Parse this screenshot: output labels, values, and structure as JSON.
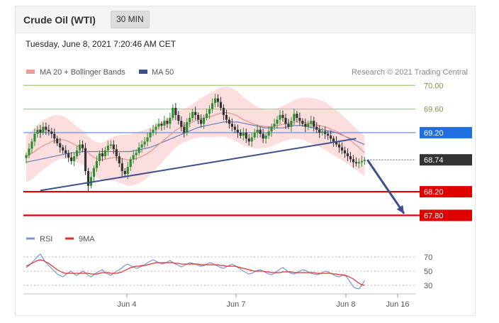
{
  "header": {
    "title": "Crude Oil (WTI)",
    "timeframe": "30 MIN",
    "timestamp": "Tuesday, June 8, 2021 7:20:46 AM CET"
  },
  "legend": {
    "items": [
      {
        "label": "MA 20 + Bollinger Bands",
        "color": "#f19a9a"
      },
      {
        "label": "MA 50",
        "color": "#3a4f8c"
      }
    ],
    "credit": "Research © 2021 Trading Central"
  },
  "colors": {
    "bullish": "#2f8f2f",
    "bearish": "#333333",
    "bollinger_fill": "#fbd8d8",
    "ma20": "#e79090",
    "ma50": "#6680b8",
    "trendline": "#3a4f8c",
    "resistance_green": "#a8d08a",
    "pivot_blue": "#6f8fd6",
    "support_red": "#e00000",
    "rsi": "#7c95d3",
    "rsi_ma": "#e03030"
  },
  "chart_data": [
    {
      "type": "candlestick",
      "title": "Crude Oil (WTI)",
      "ylim": [
        67.6,
        70.1
      ],
      "x_ticks": [
        "Jun 4",
        "Jun 7",
        "Jun 8",
        "Jun 16"
      ],
      "levels": [
        {
          "label": "70.00",
          "value": 70.0,
          "style": "resistance"
        },
        {
          "label": "69.60",
          "value": 69.6,
          "style": "resistance"
        },
        {
          "label": "69.20",
          "value": 69.2,
          "style": "pivot"
        },
        {
          "label": "68.74",
          "value": 68.74,
          "style": "last"
        },
        {
          "label": "68.20",
          "value": 68.2,
          "style": "support"
        },
        {
          "label": "67.80",
          "value": 67.8,
          "style": "support"
        }
      ],
      "trendline": {
        "from": {
          "bar": 5,
          "price": 68.22
        },
        "to": {
          "bar": 117,
          "price": 69.1
        }
      },
      "forecast_arrow": {
        "from": {
          "bar": 121,
          "price": 68.74
        },
        "to": {
          "bar": 134,
          "price": 67.83
        }
      },
      "closes": [
        68.82,
        68.93,
        69.05,
        69.18,
        69.25,
        69.2,
        69.3,
        69.25,
        69.22,
        69.18,
        69.1,
        69.02,
        68.95,
        68.9,
        68.85,
        68.78,
        68.72,
        68.8,
        68.9,
        69.0,
        68.94,
        68.55,
        68.3,
        68.45,
        68.6,
        68.72,
        68.85,
        68.8,
        68.9,
        68.98,
        69.0,
        68.92,
        68.8,
        68.68,
        68.55,
        68.5,
        68.62,
        68.75,
        68.82,
        68.86,
        68.95,
        69.0,
        69.05,
        69.12,
        69.2,
        69.25,
        69.3,
        69.35,
        69.32,
        69.4,
        69.35,
        69.45,
        69.62,
        69.5,
        69.4,
        69.3,
        69.2,
        69.38,
        69.45,
        69.55,
        69.5,
        69.42,
        69.35,
        69.45,
        69.52,
        69.6,
        69.7,
        69.78,
        69.72,
        69.62,
        69.5,
        69.42,
        69.35,
        69.3,
        69.25,
        69.2,
        69.15,
        69.2,
        69.1,
        69.05,
        69.12,
        69.2,
        69.25,
        69.18,
        69.1,
        69.15,
        69.22,
        69.3,
        69.35,
        69.42,
        69.5,
        69.45,
        69.35,
        69.3,
        69.4,
        69.52,
        69.45,
        69.4,
        69.35,
        69.3,
        69.35,
        69.4,
        69.3,
        69.25,
        69.2,
        69.22,
        69.18,
        69.15,
        69.1,
        69.05,
        69.0,
        68.95,
        68.9,
        68.85,
        68.8,
        68.75,
        68.7,
        68.68,
        68.7,
        68.72,
        68.74
      ],
      "ma20": [
        68.8,
        68.82,
        68.85,
        68.88,
        68.92,
        68.95,
        68.98,
        69.0,
        69.02,
        69.05,
        69.06,
        69.07,
        69.08,
        69.08,
        69.07,
        69.05,
        69.03,
        69.0,
        68.98,
        68.96,
        68.94,
        68.9,
        68.86,
        68.82,
        68.78,
        68.76,
        68.74,
        68.74,
        68.75,
        68.76,
        68.77,
        68.78,
        68.78,
        68.77,
        68.76,
        68.75,
        68.74,
        68.74,
        68.75,
        68.76,
        68.78,
        68.8,
        68.82,
        68.85,
        68.88,
        68.92,
        68.96,
        69.0,
        69.04,
        69.08,
        69.12,
        69.16,
        69.2,
        69.24,
        69.27,
        69.3,
        69.32,
        69.34,
        69.36,
        69.38,
        69.4,
        69.42,
        69.44,
        69.45,
        69.46,
        69.47,
        69.48,
        69.5,
        69.52,
        69.53,
        69.54,
        69.54,
        69.53,
        69.52,
        69.5,
        69.48,
        69.45,
        69.42,
        69.4,
        69.38,
        69.36,
        69.34,
        69.33,
        69.32,
        69.31,
        69.3,
        69.3,
        69.3,
        69.31,
        69.32,
        69.33,
        69.34,
        69.35,
        69.36,
        69.37,
        69.38,
        69.38,
        69.38,
        69.38,
        69.37,
        69.36,
        69.35,
        69.34,
        69.33,
        69.32,
        69.31,
        69.3,
        69.28,
        69.26,
        69.24,
        69.22,
        69.2,
        69.17,
        69.14,
        69.11,
        69.07,
        69.03,
        68.99,
        68.95,
        68.9,
        68.86
      ],
      "ma50": [
        68.7,
        68.71,
        68.72,
        68.73,
        68.74,
        68.75,
        68.76,
        68.77,
        68.78,
        68.79,
        68.8,
        68.81,
        68.82,
        68.83,
        68.84,
        68.85,
        68.86,
        68.86,
        68.87,
        68.87,
        68.88,
        68.88,
        68.88,
        68.88,
        68.88,
        68.88,
        68.88,
        68.88,
        68.88,
        68.88,
        68.88,
        68.88,
        68.88,
        68.88,
        68.88,
        68.88,
        68.88,
        68.88,
        68.89,
        68.9,
        68.91,
        68.92,
        68.93,
        68.94,
        68.95,
        68.97,
        68.99,
        69.01,
        69.03,
        69.05,
        69.07,
        69.09,
        69.11,
        69.13,
        69.15,
        69.17,
        69.19,
        69.21,
        69.23,
        69.25,
        69.27,
        69.29,
        69.3,
        69.31,
        69.32,
        69.33,
        69.34,
        69.35,
        69.36,
        69.37,
        69.38,
        69.38,
        69.38,
        69.38,
        69.38,
        69.38,
        69.37,
        69.36,
        69.35,
        69.34,
        69.33,
        69.32,
        69.31,
        69.3,
        69.29,
        69.28,
        69.28,
        69.28,
        69.28,
        69.28,
        69.28,
        69.28,
        69.29,
        69.3,
        69.31,
        69.32,
        69.32,
        69.32,
        69.32,
        69.31,
        69.3,
        69.29,
        69.28,
        69.27,
        69.26,
        69.25,
        69.24,
        69.23,
        69.22,
        69.21,
        69.2,
        69.18,
        69.16,
        69.14,
        69.12,
        69.1,
        69.08,
        69.06,
        69.04,
        69.02,
        69.0
      ]
    },
    {
      "type": "line",
      "legend": [
        {
          "name": "RSI",
          "color": "#7c95d3"
        },
        {
          "name": "9MA",
          "color": "#e03030"
        }
      ],
      "ylim": [
        20,
        80
      ],
      "y_ticks": [
        "70",
        "50",
        "30"
      ],
      "series": [
        {
          "name": "RSI",
          "values": [
            55,
            58,
            62,
            66,
            71,
            74,
            68,
            62,
            58,
            54,
            50,
            46,
            44,
            42,
            45,
            48,
            50,
            46,
            44,
            47,
            50,
            48,
            44,
            42,
            45,
            48,
            50,
            52,
            48,
            46,
            44,
            47,
            50,
            52,
            55,
            58,
            60,
            58,
            56,
            54,
            55,
            57,
            59,
            62,
            64,
            66,
            64,
            62,
            60,
            61,
            63,
            65,
            62,
            60,
            58,
            56,
            58,
            60,
            62,
            61,
            60,
            58,
            57,
            58,
            60,
            62,
            61,
            59,
            57,
            55,
            54,
            56,
            58,
            60,
            58,
            55,
            53,
            50,
            48,
            46,
            47,
            49,
            51,
            52,
            50,
            48,
            46,
            45,
            47,
            50,
            53,
            55,
            52,
            49,
            47,
            46,
            48,
            50,
            52,
            51,
            49,
            47,
            46,
            45,
            46,
            48,
            50,
            49,
            47,
            45,
            43,
            42,
            44,
            45,
            40,
            34,
            28,
            26,
            25,
            30,
            37
          ]
        },
        {
          "name": "9MA",
          "values": [
            57,
            59,
            61,
            63,
            65,
            66,
            65,
            63,
            61,
            58,
            55,
            52,
            50,
            48,
            47,
            47,
            47,
            47,
            47,
            47,
            47,
            47,
            47,
            46,
            46,
            46,
            47,
            48,
            48,
            48,
            47,
            47,
            47,
            48,
            49,
            51,
            53,
            55,
            56,
            57,
            57,
            58,
            58,
            59,
            60,
            61,
            62,
            62,
            62,
            62,
            62,
            62,
            62,
            61,
            61,
            60,
            60,
            60,
            60,
            60,
            60,
            60,
            59,
            59,
            59,
            59,
            59,
            59,
            59,
            58,
            58,
            57,
            57,
            57,
            57,
            56,
            55,
            54,
            53,
            52,
            51,
            50,
            50,
            50,
            50,
            49,
            49,
            48,
            48,
            48,
            48,
            49,
            49,
            49,
            49,
            48,
            48,
            48,
            48,
            48,
            48,
            48,
            48,
            47,
            47,
            47,
            47,
            47,
            47,
            46,
            46,
            45,
            45,
            44,
            43,
            41,
            39,
            36,
            33,
            31,
            30
          ]
        }
      ]
    }
  ]
}
